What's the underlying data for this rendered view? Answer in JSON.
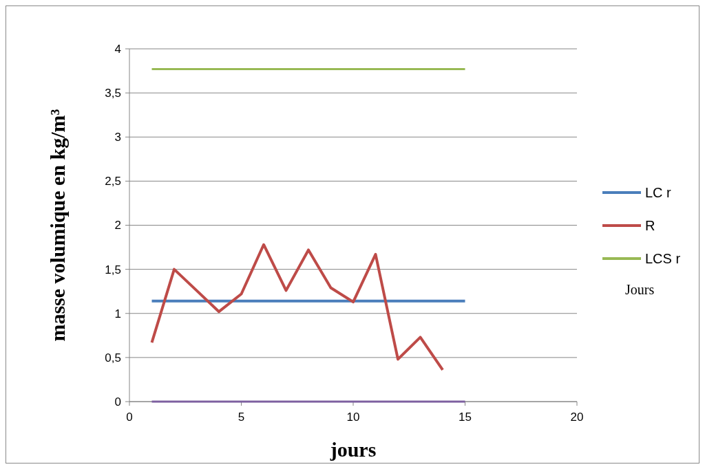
{
  "chart_data": {
    "type": "line",
    "xlabel": "jours",
    "ylabel": "masse volumique en kg/m³",
    "annotations": [
      "Jours"
    ],
    "x": [
      1,
      2,
      3,
      4,
      5,
      6,
      7,
      8,
      9,
      10,
      11,
      12,
      13,
      14,
      15
    ],
    "xlim": [
      0,
      20
    ],
    "xticks": [
      0,
      5,
      10,
      15,
      20
    ],
    "ylim": [
      0,
      4
    ],
    "yticks": [
      0,
      {
        "value": 0.5,
        "label": "0,5"
      },
      1,
      {
        "value": 1.5,
        "label": "1,5"
      },
      2,
      {
        "value": 2.5,
        "label": "2,5"
      },
      3,
      {
        "value": 3.5,
        "label": "3,5"
      },
      4
    ],
    "grid": "y",
    "legend": "right",
    "marker": "none",
    "series": [
      {
        "name": "LC r",
        "color": "#4a7ebb",
        "values": [
          1.14,
          1.14,
          1.14,
          1.14,
          1.14,
          1.14,
          1.14,
          1.14,
          1.14,
          1.14,
          1.14,
          1.14,
          1.14,
          1.14,
          1.14
        ]
      },
      {
        "name": "R",
        "color": "#be4b48",
        "values": [
          0.67,
          1.5,
          1.26,
          1.02,
          1.22,
          1.78,
          1.26,
          1.72,
          1.29,
          1.13,
          1.67,
          0.48,
          0.73,
          0.36,
          null
        ]
      },
      {
        "name": "LCS r",
        "color": "#98b954",
        "values": [
          3.77,
          3.77,
          3.77,
          3.77,
          3.77,
          3.77,
          3.77,
          3.77,
          3.77,
          3.77,
          3.77,
          3.77,
          3.77,
          3.77,
          3.77
        ]
      },
      {
        "color": "#7d60a0",
        "values": [
          0,
          0,
          0,
          0,
          0,
          0,
          0,
          0,
          0,
          0,
          0,
          0,
          0,
          0,
          0
        ]
      }
    ]
  }
}
